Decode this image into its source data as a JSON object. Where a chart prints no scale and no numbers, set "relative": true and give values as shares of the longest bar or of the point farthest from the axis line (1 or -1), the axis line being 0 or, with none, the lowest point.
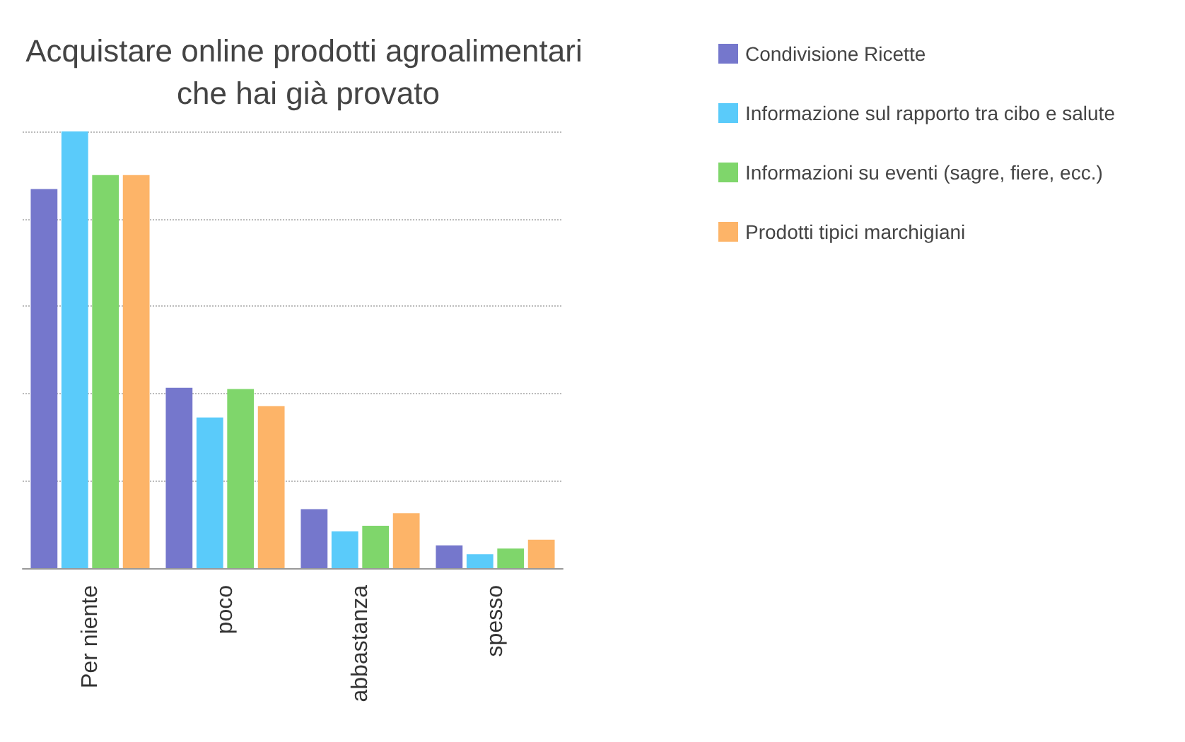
{
  "chart_data": {
    "type": "bar",
    "title": "Acquistare online prodotti agroalimentari che hai già provato",
    "categories": [
      "Per niente",
      "poco",
      "abbastanza",
      "spesso"
    ],
    "relative": true,
    "grid": "y",
    "legend": "right",
    "series": [
      {
        "name": "Condivisione Ricette",
        "color": "#7577cc",
        "values": [
          0.868,
          0.413,
          0.135,
          0.052
        ]
      },
      {
        "name": "Informazione sul rapporto tra cibo e salute",
        "color": "#5acbfa",
        "values": [
          1,
          0.345,
          0.084,
          0.032
        ]
      },
      {
        "name": "Informazioni su eventi (sagre, fiere, ecc.)",
        "color": "#7fd66b",
        "values": [
          0.9,
          0.41,
          0.097,
          0.045
        ]
      },
      {
        "name": "Prodotti tipici marchigiani",
        "color": "#fdb468",
        "values": [
          0.9,
          0.371,
          0.126,
          0.065
        ]
      }
    ]
  }
}
